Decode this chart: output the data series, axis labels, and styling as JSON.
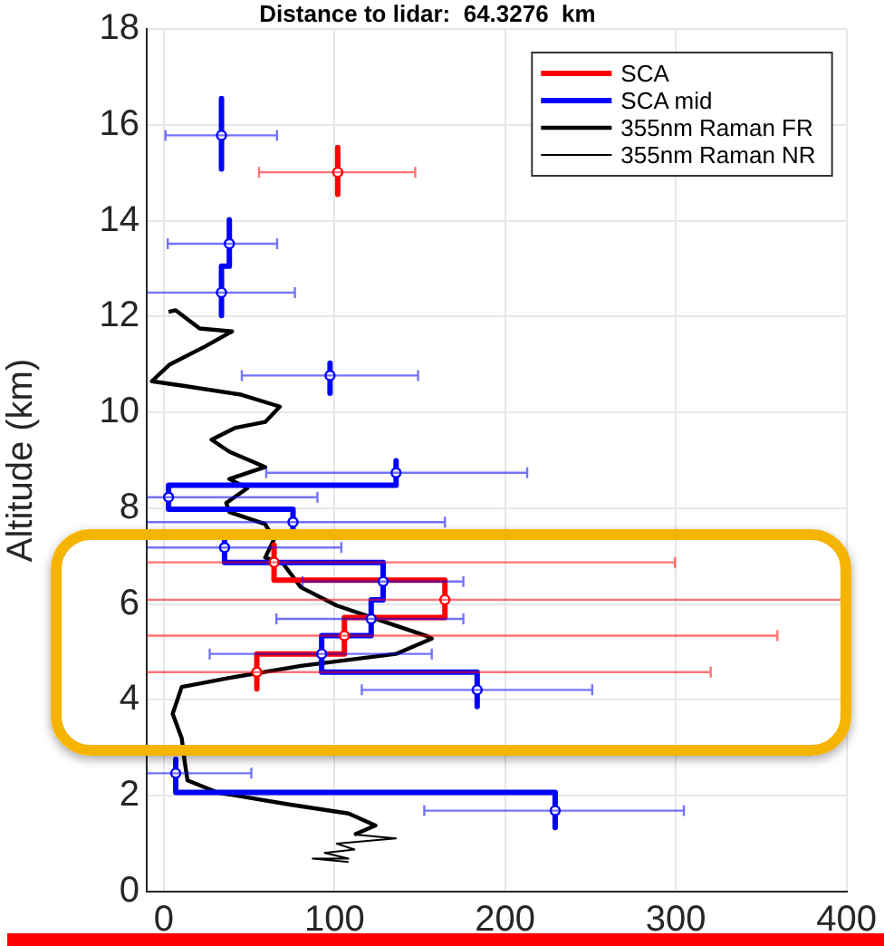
{
  "chart_data": {
    "type": "line",
    "title": "Distance to lidar:  64.3276  km",
    "ylabel": "Altitude (km)",
    "xlim": [
      -10,
      400
    ],
    "xticks": [
      0,
      100,
      200,
      300,
      400
    ],
    "ylim": [
      0,
      18
    ],
    "yticks": [
      0,
      2,
      4,
      6,
      8,
      10,
      12,
      14,
      16,
      18
    ],
    "grid": true,
    "legend": "top right",
    "marker": "none",
    "line_style": "solid",
    "series": [
      {
        "name": "SCA",
        "color": "#ff0000",
        "x": [
          101.9,
          101.9,
          null,
          64.6,
          64.6,
          164.7,
          164.7,
          105.8,
          105.8,
          54.5,
          54.5
        ],
        "values": [
          15.53,
          14.55,
          null,
          7.23,
          6.5,
          6.5,
          5.72,
          5.72,
          4.96,
          4.96,
          4.23
        ]
      },
      {
        "name": "SCA mid",
        "color": "#0000ff",
        "x": [
          33.8,
          33.8,
          null,
          38.4,
          38.4,
          33.8,
          33.8,
          null,
          97.4,
          97.4,
          null,
          136.1,
          136.1,
          2.8,
          2.8,
          75.7,
          75.7,
          35.6,
          35.6,
          128.5,
          128.5,
          121.5,
          121.5,
          92.5,
          92.5,
          183.6,
          183.6,
          null,
          7,
          7,
          229.3,
          229.3
        ],
        "values": [
          16.55,
          15.08,
          null,
          14.02,
          13.05,
          13.05,
          12.02,
          null,
          11.03,
          10.4,
          null,
          8.99,
          8.48,
          8.48,
          7.98,
          7.98,
          7.48,
          7.48,
          6.87,
          6.87,
          6.09,
          6.09,
          5.34,
          5.34,
          4.58,
          4.58,
          3.86,
          null,
          2.76,
          2.07,
          2.07,
          1.34
        ]
      },
      {
        "name": "355nm Raman FR",
        "color": "#000000",
        "x": [
          2.8,
          7,
          21,
          40,
          24.4,
          3.5,
          -7,
          10.5,
          45.3,
          68,
          59.4,
          42,
          28,
          38.4,
          59.4,
          38.4,
          49,
          36.6,
          38.4,
          59.4,
          64.6,
          59.4,
          69.8,
          80.3,
          101.3,
          132.7,
          153.6,
          157,
          136,
          80.3,
          38.4,
          10.5,
          5.2,
          10.5,
          12.3,
          13.9,
          31.4,
          73.3,
          108.2,
          124,
          111.7
        ],
        "values": [
          12.1,
          12.13,
          11.75,
          11.69,
          11.38,
          11.0,
          10.65,
          10.56,
          10.37,
          10.12,
          9.8,
          9.68,
          9.43,
          9.18,
          8.86,
          8.61,
          8.42,
          8.11,
          7.92,
          7.67,
          7.35,
          6.97,
          6.85,
          6.35,
          5.97,
          5.59,
          5.34,
          5.28,
          4.96,
          4.71,
          4.46,
          4.27,
          3.71,
          3.2,
          2.7,
          2.32,
          2.07,
          1.82,
          1.63,
          1.38,
          1.19
        ]
      },
      {
        "name": "355nm Raman NR",
        "color": "#000000",
        "x": [
          124,
          111.7,
          136,
          101.3,
          111.7,
          94.2,
          108.2,
          87.2,
          108.2
        ],
        "values": [
          1.38,
          1.19,
          1.11,
          1.0,
          0.88,
          0.81,
          0.69,
          0.69,
          0.62
        ]
      },
      {
        "color": "#ff0000",
        "type": "scatter",
        "marker": "circle",
        "x": [
          101.9,
          64.6,
          164.7,
          105.8,
          54.5
        ],
        "values": [
          15.01,
          6.87,
          6.09,
          5.34,
          4.58
        ],
        "xerrors": [
          [
            55.8,
            147.3
          ],
          [
            -10,
            299.5
          ],
          [
            -10,
            400
          ],
          [
            -10,
            359.5
          ],
          [
            -10,
            320.4
          ]
        ]
      },
      {
        "color": "#0000ff",
        "type": "scatter",
        "marker": "circle",
        "x": [
          33.8,
          38.4,
          33.8,
          97.4,
          136.1,
          2.8,
          75.7,
          35.6,
          128.5,
          121.5,
          92.5,
          183.6,
          7,
          229.3
        ],
        "values": [
          15.78,
          13.52,
          12.5,
          10.77,
          8.74,
          8.23,
          7.71,
          7.18,
          6.47,
          5.69,
          4.96,
          4.21,
          2.47,
          1.69
        ],
        "xerrors": [
          [
            1,
            66.3
          ],
          [
            2.3,
            66.4
          ],
          [
            -10,
            76.8
          ],
          [
            45.7,
            149
          ],
          [
            60,
            212.9
          ],
          [
            -10,
            90
          ],
          [
            -10,
            164.7
          ],
          [
            -10,
            104
          ],
          [
            81.3,
            175.5
          ],
          [
            66,
            175.5
          ],
          [
            26.9,
            157
          ],
          [
            116,
            251
          ],
          [
            -10,
            51.3
          ],
          [
            152.6,
            304.7
          ]
        ]
      }
    ]
  }
}
